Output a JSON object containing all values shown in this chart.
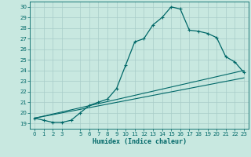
{
  "title": "",
  "xlabel": "Humidex (Indice chaleur)",
  "bg_color": "#c8e8e0",
  "grid_color": "#a8ccc8",
  "line_color": "#006868",
  "xlim": [
    -0.5,
    23.5
  ],
  "ylim": [
    18.5,
    30.5
  ],
  "xticks": [
    0,
    1,
    2,
    3,
    5,
    6,
    7,
    8,
    9,
    10,
    11,
    12,
    13,
    14,
    15,
    16,
    17,
    18,
    19,
    20,
    21,
    22,
    23
  ],
  "yticks": [
    19,
    20,
    21,
    22,
    23,
    24,
    25,
    26,
    27,
    28,
    29,
    30
  ],
  "main_curve_x": [
    0,
    1,
    2,
    3,
    4,
    5,
    6,
    7,
    8,
    9,
    10,
    11,
    12,
    13,
    14,
    15,
    16,
    17,
    18,
    19,
    20,
    21,
    22,
    23
  ],
  "main_curve_y": [
    19.5,
    19.3,
    19.1,
    19.1,
    19.3,
    20.0,
    20.7,
    21.0,
    21.3,
    22.3,
    24.5,
    26.7,
    27.0,
    28.3,
    29.0,
    30.0,
    29.8,
    27.8,
    27.7,
    27.5,
    27.1,
    25.3,
    24.8,
    23.8
  ],
  "line1_x": [
    0,
    23
  ],
  "line1_y": [
    19.5,
    24.0
  ],
  "line2_x": [
    0,
    23
  ],
  "line2_y": [
    19.5,
    23.3
  ]
}
